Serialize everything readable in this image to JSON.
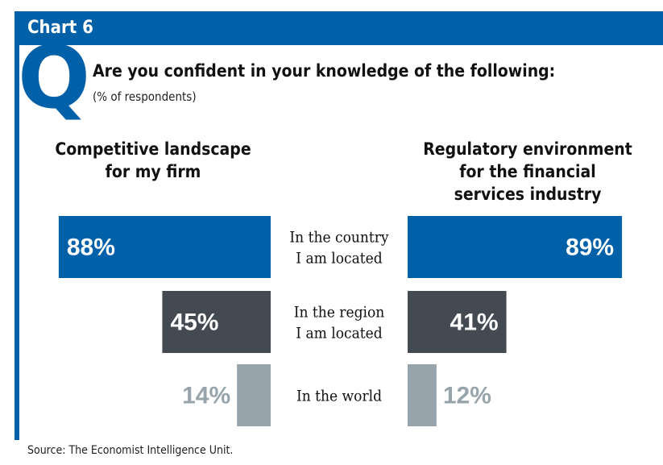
{
  "header": {
    "title": "Chart 6"
  },
  "question": {
    "letter": "Q",
    "text": "Are you confident in your knowledge of the following:",
    "subtitle": "(% of respondents)"
  },
  "chart_data": {
    "type": "bar",
    "orientation": "horizontal-diverging",
    "categories": [
      [
        "In the country",
        "I am located"
      ],
      [
        "In the region",
        "I am located"
      ],
      [
        "In the world"
      ]
    ],
    "series": [
      {
        "name": "Competitive landscape\nfor my firm",
        "values": [
          88,
          45,
          14
        ],
        "labels": [
          "88%",
          "45%",
          "14%"
        ]
      },
      {
        "name": "Regulatory environment\nfor the financial\nservices industry",
        "values": [
          89,
          41,
          12
        ],
        "labels": [
          "89%",
          "41%",
          "12%"
        ]
      }
    ],
    "colors": [
      "#0060a8",
      "#434a52",
      "#97a4ab"
    ],
    "label_colors": [
      "#ffffff",
      "#ffffff",
      "#97a4ab"
    ],
    "xlim": [
      0,
      100
    ]
  },
  "source": "Source: The Economist Intelligence Unit."
}
